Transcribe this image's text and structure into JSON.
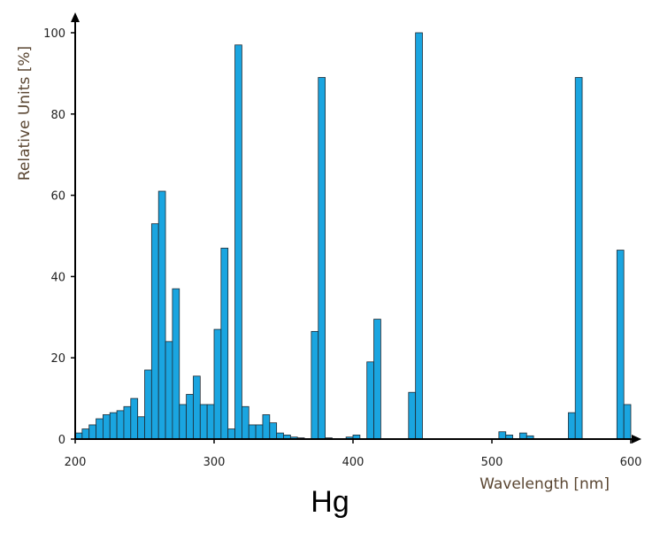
{
  "chart_data": {
    "type": "bar",
    "ylabel": "Relative Units [%]",
    "xlabel": "Wavelength [nm]",
    "caption": "Hg",
    "xlim": [
      200,
      600
    ],
    "ylim": [
      0,
      100
    ],
    "x_ticks": [
      200,
      300,
      400,
      500,
      600
    ],
    "y_ticks": [
      0,
      20,
      40,
      60,
      80,
      100
    ],
    "bar_width_nm": 5,
    "bar_color": "#1aa5e0",
    "edge_color": "#1f2a33",
    "bars": [
      {
        "x": 200,
        "y": 1.5
      },
      {
        "x": 205,
        "y": 2.5
      },
      {
        "x": 210,
        "y": 3.5
      },
      {
        "x": 215,
        "y": 5
      },
      {
        "x": 220,
        "y": 6
      },
      {
        "x": 225,
        "y": 6.5
      },
      {
        "x": 230,
        "y": 7
      },
      {
        "x": 235,
        "y": 8
      },
      {
        "x": 240,
        "y": 10
      },
      {
        "x": 245,
        "y": 5.5
      },
      {
        "x": 250,
        "y": 17
      },
      {
        "x": 255,
        "y": 53
      },
      {
        "x": 260,
        "y": 61
      },
      {
        "x": 265,
        "y": 24
      },
      {
        "x": 270,
        "y": 37
      },
      {
        "x": 275,
        "y": 8.5
      },
      {
        "x": 280,
        "y": 11
      },
      {
        "x": 285,
        "y": 15.5
      },
      {
        "x": 290,
        "y": 8.5
      },
      {
        "x": 295,
        "y": 8.5
      },
      {
        "x": 300,
        "y": 27
      },
      {
        "x": 305,
        "y": 47
      },
      {
        "x": 310,
        "y": 2.5
      },
      {
        "x": 315,
        "y": 97
      },
      {
        "x": 320,
        "y": 8
      },
      {
        "x": 325,
        "y": 3.5
      },
      {
        "x": 330,
        "y": 3.5
      },
      {
        "x": 335,
        "y": 6
      },
      {
        "x": 340,
        "y": 4
      },
      {
        "x": 345,
        "y": 1.5
      },
      {
        "x": 350,
        "y": 1
      },
      {
        "x": 355,
        "y": 0.5
      },
      {
        "x": 360,
        "y": 0.3
      },
      {
        "x": 370,
        "y": 26.5
      },
      {
        "x": 375,
        "y": 89
      },
      {
        "x": 380,
        "y": 0.3
      },
      {
        "x": 395,
        "y": 0.5
      },
      {
        "x": 400,
        "y": 1
      },
      {
        "x": 410,
        "y": 19
      },
      {
        "x": 415,
        "y": 29.5
      },
      {
        "x": 440,
        "y": 11.5
      },
      {
        "x": 445,
        "y": 100
      },
      {
        "x": 505,
        "y": 1.8
      },
      {
        "x": 510,
        "y": 1
      },
      {
        "x": 520,
        "y": 1.5
      },
      {
        "x": 525,
        "y": 0.8
      },
      {
        "x": 555,
        "y": 6.5
      },
      {
        "x": 560,
        "y": 89
      },
      {
        "x": 590,
        "y": 46.5
      },
      {
        "x": 595,
        "y": 8.5
      }
    ]
  }
}
